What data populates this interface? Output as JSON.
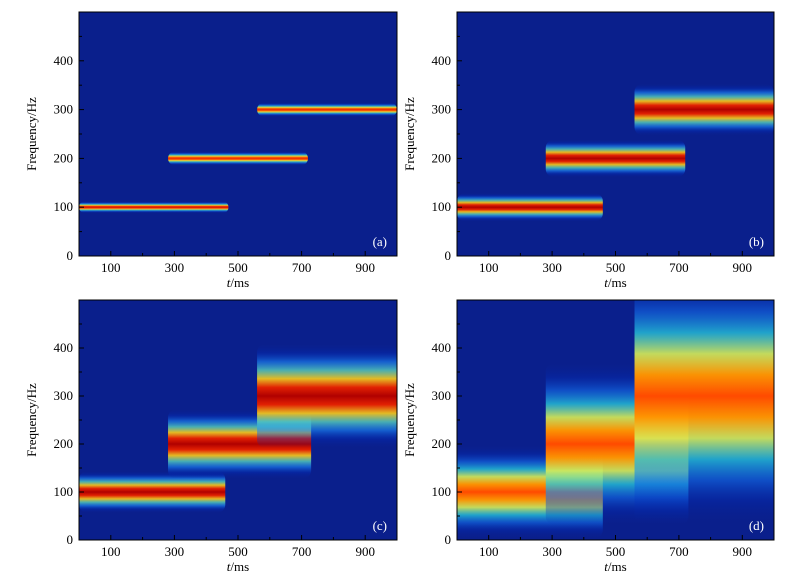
{
  "colors": {
    "background": "#0a1f8c",
    "colormap": [
      "#0a1f8c",
      "#0033cc",
      "#1e90ff",
      "#21c6df",
      "#7ee0a8",
      "#f0f040",
      "#ffb000",
      "#ff3000",
      "#b00000"
    ]
  },
  "chart_data": [
    {
      "type": "heatmap",
      "panel": "(a)",
      "xlabel_italic": "t",
      "xlabel_unit": "/ms",
      "ylabel": "Frequency/Hz",
      "xlim": [
        0,
        1000
      ],
      "ylim": [
        0,
        500
      ],
      "xticks": [
        100,
        300,
        500,
        700,
        900
      ],
      "yticks": [
        0,
        100,
        200,
        300,
        400
      ],
      "grid": false,
      "bands": [
        {
          "t_start": 0,
          "t_end": 470,
          "freq": 100,
          "intensity": 0.95,
          "spread_hz": 5
        },
        {
          "t_start": 280,
          "t_end": 720,
          "freq": 200,
          "intensity": 0.9,
          "spread_hz": 6
        },
        {
          "t_start": 560,
          "t_end": 1000,
          "freq": 300,
          "intensity": 0.9,
          "spread_hz": 6
        }
      ]
    },
    {
      "type": "heatmap",
      "panel": "(b)",
      "xlabel_italic": "t",
      "xlabel_unit": "/ms",
      "ylabel": "Frequency/Hz",
      "xlim": [
        0,
        1000
      ],
      "ylim": [
        0,
        500
      ],
      "xticks": [
        100,
        300,
        500,
        700,
        900
      ],
      "yticks": [
        0,
        100,
        200,
        300,
        400
      ],
      "grid": false,
      "bands": [
        {
          "t_start": 0,
          "t_end": 460,
          "freq": 100,
          "intensity": 1.0,
          "spread_hz": 12
        },
        {
          "t_start": 280,
          "t_end": 720,
          "freq": 200,
          "intensity": 1.0,
          "spread_hz": 16
        },
        {
          "t_start": 560,
          "t_end": 1000,
          "freq": 300,
          "intensity": 1.0,
          "spread_hz": 22
        }
      ]
    },
    {
      "type": "heatmap",
      "panel": "(c)",
      "xlabel_italic": "t",
      "xlabel_unit": "/ms",
      "ylabel": "Frequency/Hz",
      "xlim": [
        0,
        1000
      ],
      "ylim": [
        0,
        500
      ],
      "xticks": [
        100,
        300,
        500,
        700,
        900
      ],
      "yticks": [
        0,
        100,
        200,
        300,
        400
      ],
      "grid": false,
      "bands": [
        {
          "t_start": 0,
          "t_end": 460,
          "freq": 100,
          "intensity": 1.0,
          "spread_hz": 18
        },
        {
          "t_start": 280,
          "t_end": 730,
          "freq": 200,
          "intensity": 1.0,
          "spread_hz": 30
        },
        {
          "t_start": 560,
          "t_end": 1000,
          "freq": 300,
          "intensity": 1.0,
          "spread_hz": 45
        }
      ]
    },
    {
      "type": "heatmap",
      "panel": "(d)",
      "xlabel_italic": "t",
      "xlabel_unit": "/ms",
      "ylabel": "Frequency/Hz",
      "xlim": [
        0,
        1000
      ],
      "ylim": [
        0,
        500
      ],
      "xticks": [
        100,
        300,
        500,
        700,
        900
      ],
      "yticks": [
        0,
        100,
        200,
        300,
        400
      ],
      "grid": false,
      "bands": [
        {
          "t_start": 0,
          "t_end": 460,
          "freq": 100,
          "intensity": 0.85,
          "spread_hz": 40
        },
        {
          "t_start": 280,
          "t_end": 730,
          "freq": 200,
          "intensity": 0.85,
          "spread_hz": 70
        },
        {
          "t_start": 560,
          "t_end": 1000,
          "freq": 300,
          "intensity": 0.85,
          "spread_hz": 110
        }
      ]
    }
  ]
}
